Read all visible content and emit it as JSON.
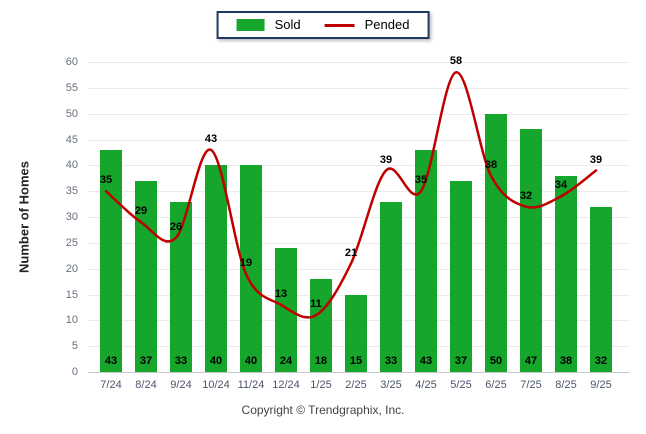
{
  "chart_data": {
    "type": "bar",
    "title": "",
    "categories": [
      "7/24",
      "8/24",
      "9/24",
      "10/24",
      "11/24",
      "12/24",
      "1/25",
      "2/25",
      "3/25",
      "4/25",
      "5/25",
      "6/25",
      "7/25",
      "8/25",
      "9/25"
    ],
    "series": [
      {
        "name": "Sold",
        "type": "bar",
        "color": "#15A62B",
        "values": [
          43,
          37,
          33,
          40,
          40,
          24,
          18,
          15,
          33,
          43,
          37,
          50,
          47,
          38,
          32
        ]
      },
      {
        "name": "Pended",
        "type": "line",
        "color": "#C00000",
        "values": [
          35,
          29,
          26,
          43,
          19,
          13,
          11,
          21,
          39,
          35,
          58,
          38,
          32,
          34,
          39
        ]
      }
    ],
    "xlabel": "",
    "ylabel": "Number of Homes",
    "ylim": [
      0,
      60
    ],
    "ytick_step": 5,
    "grid": true,
    "legend_position": "top-center"
  },
  "footer": {
    "copyright": "Copyright © Trendgraphix, Inc."
  }
}
